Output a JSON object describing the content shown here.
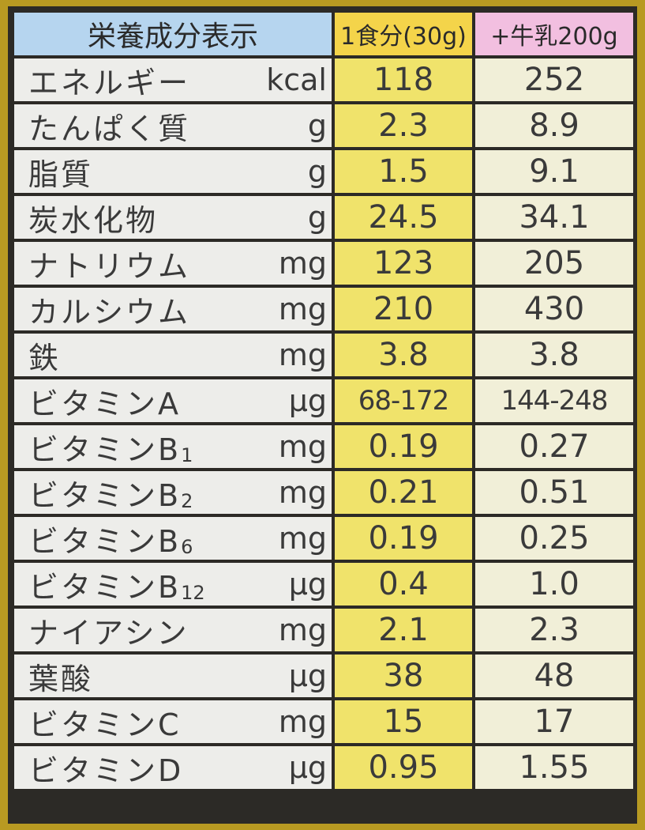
{
  "header": {
    "title": "栄養成分表示",
    "col1": "1食分(30g)",
    "col2": "+牛乳200g"
  },
  "rows": [
    {
      "name": "エネルギー",
      "sub": "",
      "unit": "kcal",
      "v1": "118",
      "v2": "252"
    },
    {
      "name": "たんぱく質",
      "sub": "",
      "unit": "g",
      "v1": "2.3",
      "v2": "8.9"
    },
    {
      "name": "脂質",
      "sub": "",
      "unit": "g",
      "v1": "1.5",
      "v2": "9.1"
    },
    {
      "name": "炭水化物",
      "sub": "",
      "unit": "g",
      "v1": "24.5",
      "v2": "34.1"
    },
    {
      "name": "ナトリウム",
      "sub": "",
      "unit": "mg",
      "v1": "123",
      "v2": "205"
    },
    {
      "name": "カルシウム",
      "sub": "",
      "unit": "mg",
      "v1": "210",
      "v2": "430"
    },
    {
      "name": "鉄",
      "sub": "",
      "unit": "mg",
      "v1": "3.8",
      "v2": "3.8"
    },
    {
      "name": "ビタミンA",
      "sub": "",
      "unit": "μg",
      "v1": "68-172",
      "v2": "144-248"
    },
    {
      "name": "ビタミンB",
      "sub": "1",
      "unit": "mg",
      "v1": "0.19",
      "v2": "0.27"
    },
    {
      "name": "ビタミンB",
      "sub": "2",
      "unit": "mg",
      "v1": "0.21",
      "v2": "0.51"
    },
    {
      "name": "ビタミンB",
      "sub": "6",
      "unit": "mg",
      "v1": "0.19",
      "v2": "0.25"
    },
    {
      "name": "ビタミンB",
      "sub": "12",
      "unit": "μg",
      "v1": "0.4",
      "v2": "1.0"
    },
    {
      "name": "ナイアシン",
      "sub": "",
      "unit": "mg",
      "v1": "2.1",
      "v2": "2.3"
    },
    {
      "name": "葉酸",
      "sub": "",
      "unit": "μg",
      "v1": "38",
      "v2": "48"
    },
    {
      "name": "ビタミンC",
      "sub": "",
      "unit": "mg",
      "v1": "15",
      "v2": "17"
    },
    {
      "name": "ビタミンD",
      "sub": "",
      "unit": "μg",
      "v1": "0.95",
      "v2": "1.55"
    }
  ]
}
